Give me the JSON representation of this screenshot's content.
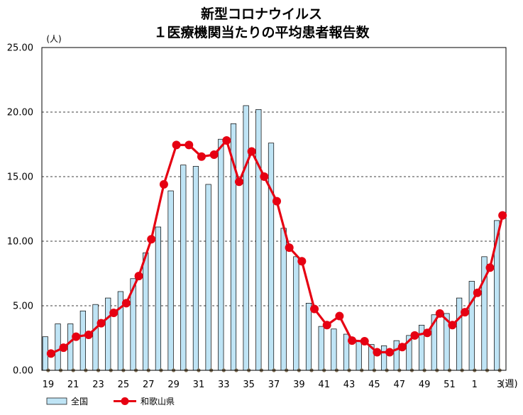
{
  "chart_data": {
    "type": "bar+line",
    "title": [
      "新型コロナウイルス",
      "１医療機関当たりの平均患者報告数"
    ],
    "y_unit": "(人)",
    "x_unit": "(週)",
    "ylim": [
      0,
      25
    ],
    "y_ticks": [
      "0.00",
      "5.00",
      "10.00",
      "15.00",
      "20.00",
      "25.00"
    ],
    "y_tick_values": [
      0,
      5,
      10,
      15,
      20,
      25
    ],
    "grid": "dashed horizontal",
    "legend_position": "bottom-left",
    "weeks": [
      19,
      20,
      21,
      22,
      23,
      24,
      25,
      26,
      27,
      28,
      29,
      30,
      31,
      32,
      33,
      34,
      35,
      36,
      37,
      38,
      39,
      40,
      41,
      42,
      43,
      44,
      45,
      46,
      47,
      48,
      49,
      50,
      51,
      52,
      1,
      2,
      3
    ],
    "x_tick_labels": [
      "19",
      "21",
      "23",
      "25",
      "27",
      "29",
      "31",
      "33",
      "35",
      "37",
      "39",
      "41",
      "43",
      "45",
      "47",
      "49",
      "51",
      "1",
      "3"
    ],
    "series": [
      {
        "name": "全国",
        "kind": "bar",
        "color": "#bfe4f5",
        "values": [
          2.6,
          3.6,
          3.6,
          4.6,
          5.1,
          5.6,
          6.1,
          7.1,
          9.1,
          11.1,
          13.9,
          15.9,
          15.8,
          14.4,
          17.9,
          19.1,
          20.5,
          20.2,
          17.6,
          11.0,
          8.8,
          5.2,
          3.4,
          3.2,
          2.8,
          2.3,
          2.0,
          1.9,
          2.3,
          2.7,
          3.5,
          4.3,
          4.4,
          5.6,
          6.9,
          8.8,
          11.6
        ]
      },
      {
        "name": "和歌山県",
        "kind": "line",
        "color": "#e60012",
        "values": [
          1.3,
          1.75,
          2.6,
          2.75,
          3.65,
          4.45,
          5.2,
          7.3,
          10.15,
          14.4,
          17.45,
          17.45,
          16.55,
          16.7,
          17.8,
          14.6,
          16.95,
          15.0,
          13.1,
          9.5,
          8.45,
          4.75,
          3.5,
          4.2,
          2.3,
          2.25,
          1.4,
          1.4,
          1.8,
          2.7,
          2.9,
          4.4,
          3.5,
          4.5,
          6.0,
          7.95,
          12.0
        ]
      }
    ]
  }
}
